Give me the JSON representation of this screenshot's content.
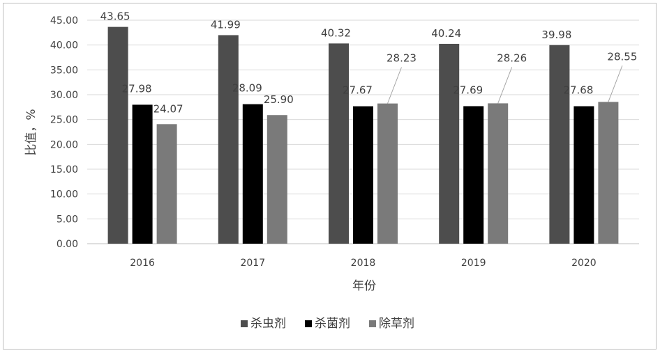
{
  "chart_data": {
    "type": "bar",
    "categories": [
      "2016",
      "2017",
      "2018",
      "2019",
      "2020"
    ],
    "series": [
      {
        "name": "杀虫剂",
        "color": "#4d4d4d",
        "values": [
          43.65,
          41.99,
          40.32,
          40.24,
          39.98
        ],
        "labels": [
          "43.65",
          "41.99",
          "40.32",
          "40.24",
          "39.98"
        ]
      },
      {
        "name": "杀菌剂",
        "color": "#000000",
        "values": [
          27.98,
          28.09,
          27.67,
          27.69,
          27.68
        ],
        "labels": [
          "27.98",
          "28.09",
          "27.67",
          "27.69",
          "27.68"
        ]
      },
      {
        "name": "除草剂",
        "color": "#7a7a7a",
        "values": [
          24.07,
          25.9,
          28.23,
          28.26,
          28.55
        ],
        "labels": [
          "24.07",
          "25.90",
          "28.23",
          "28.26",
          "28.55"
        ]
      }
    ],
    "yticks": [
      "0.00",
      "5.00",
      "10.00",
      "15.00",
      "20.00",
      "25.00",
      "30.00",
      "35.00",
      "40.00",
      "45.00"
    ],
    "ylim": [
      0,
      45
    ],
    "xlabel": "年份",
    "ylabel": "比值，%",
    "grid": true,
    "legend_position": "bottom"
  }
}
